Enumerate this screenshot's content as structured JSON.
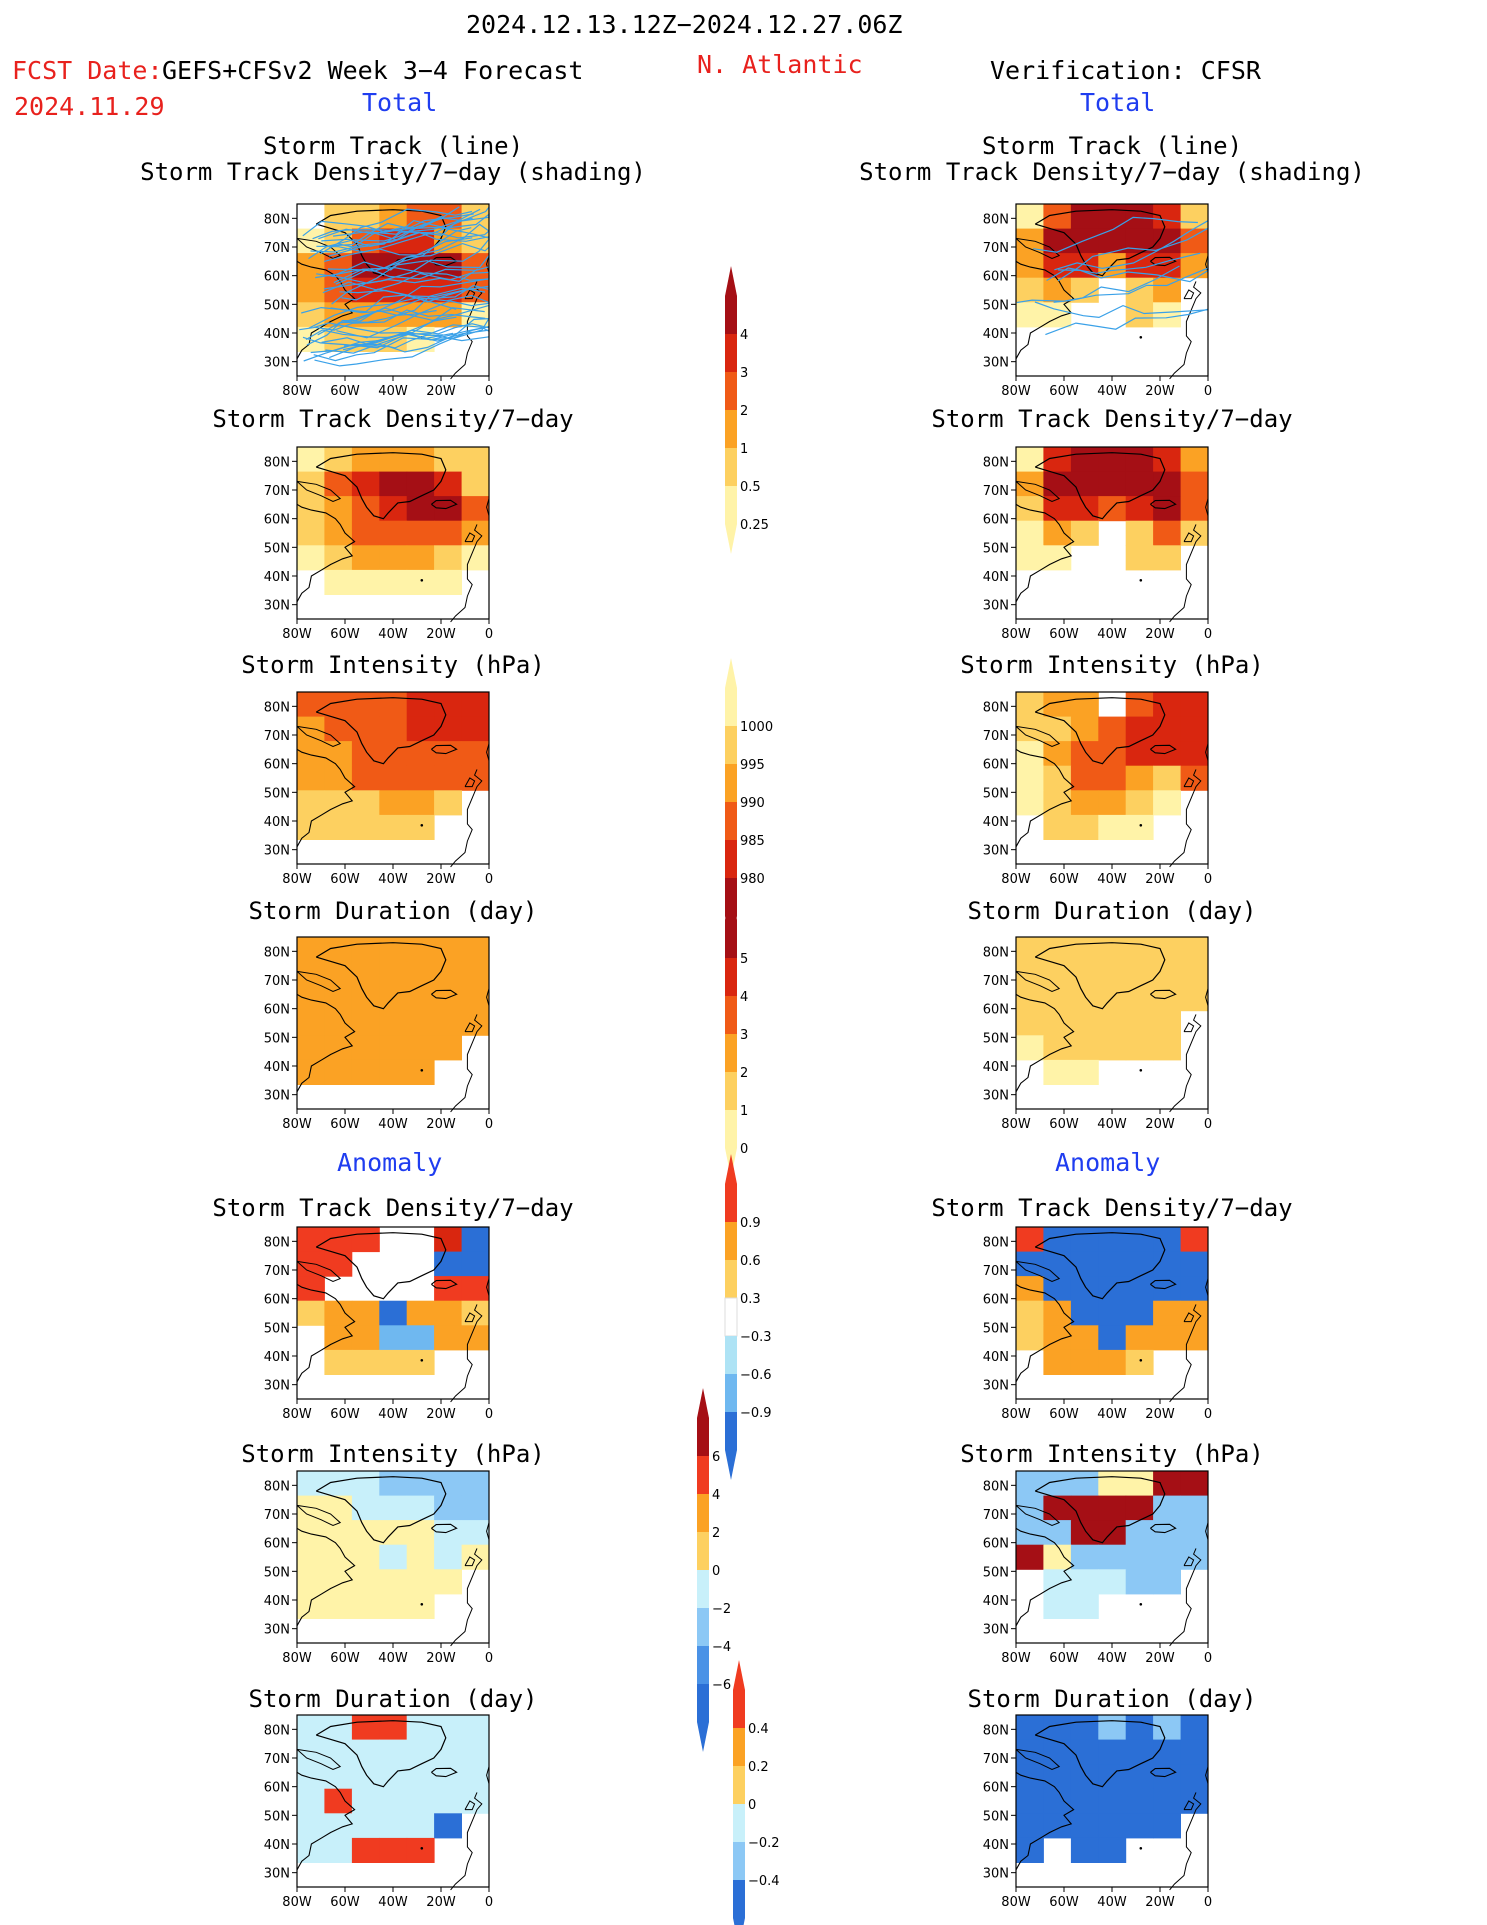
{
  "header": {
    "date_range": "2024.12.13.12Z−2024.12.27.06Z",
    "fcst_label": "FCST Date:",
    "fcst_date": "2024.11.29",
    "model": "GEFS+CFSv2 Week 3−4 Forecast",
    "region": "N. Atlantic",
    "verification": "Verification: CFSR",
    "total_label_left": "Total",
    "total_label_right": "Total",
    "anomaly_label_left": "Anomaly",
    "anomaly_label_right": "Anomaly"
  },
  "panel_titles": {
    "track_line": "Storm Track (line)",
    "track_shading": "Storm Track Density/7−day (shading)",
    "density": "Storm Track Density/7−day",
    "intensity": "Storm Intensity (hPa)",
    "duration": "Storm Duration (day)"
  },
  "axes": {
    "lat_ticks": [
      "80N",
      "70N",
      "60N",
      "50N",
      "40N",
      "30N"
    ],
    "lon_ticks": [
      "80W",
      "60W",
      "40W",
      "20W",
      "0"
    ]
  },
  "colorbars": {
    "density": {
      "labels": [
        "4",
        "3",
        "2",
        "1",
        "0.5",
        "0.25"
      ],
      "colors": [
        "#a50f15",
        "#d9260f",
        "#f05a16",
        "#fba224",
        "#fdd060",
        "#fff3a8"
      ]
    },
    "intensity": {
      "labels": [
        "1000",
        "995",
        "990",
        "985",
        "980"
      ],
      "colors": [
        "#fff3a8",
        "#fdd060",
        "#fba224",
        "#f05a16",
        "#d9260f",
        "#a50f15"
      ]
    },
    "duration": {
      "labels": [
        "5",
        "4",
        "3",
        "2",
        "1",
        "0"
      ],
      "colors": [
        "#a50f15",
        "#d9260f",
        "#f05a16",
        "#fba224",
        "#fdd060",
        "#fff3a8"
      ]
    },
    "density_anom": {
      "labels": [
        "0.9",
        "0.6",
        "0.3",
        "−0.3",
        "−0.6",
        "−0.9"
      ],
      "colors": [
        "#f03b20",
        "#fba224",
        "#fdd060",
        "#ffffff",
        "#aee3f5",
        "#6fb8f0",
        "#2b6fd6"
      ]
    },
    "intensity_anom": {
      "labels": [
        "6",
        "4",
        "2",
        "0",
        "−2",
        "−4",
        "−6"
      ],
      "colors": [
        "#a50f15",
        "#f03b20",
        "#fba224",
        "#fdd060",
        "#c8f0fa",
        "#8cc8f5",
        "#4a92e6",
        "#2b6fd6"
      ]
    },
    "duration_anom": {
      "labels": [
        "0.4",
        "0.2",
        "0",
        "−0.2",
        "−0.4"
      ],
      "colors": [
        "#f03b20",
        "#fba224",
        "#fdd060",
        "#c8f0fa",
        "#8cc8f5",
        "#2b6fd6"
      ]
    }
  },
  "chart_data": [
    {
      "type": "heatmap",
      "panel": "fcst-track",
      "title": "Storm Track (line) / Storm Track Density/7−day (shading)",
      "xlim": [
        -80,
        0
      ],
      "ylim": [
        25,
        85
      ],
      "palette": "dens",
      "rows": [
        "0223442",
        "1245532",
        "3466664",
        "3455554",
        "2333331",
        "1222100",
        "0000000"
      ]
    },
    {
      "type": "heatmap",
      "panel": "obs-track",
      "title": "Storm Track (line) / Storm Track Density/7−day (shading)",
      "xlim": [
        -80,
        0
      ],
      "ylim": [
        25,
        85
      ],
      "palette": "dens",
      "rows": [
        "1466652",
        "3666664",
        "3553553",
        "2320230",
        "1100210",
        "0000000",
        "0000000"
      ]
    },
    {
      "type": "heatmap",
      "panel": "fcst-density",
      "title": "Storm Track Density/7−day",
      "xlim": [
        -80,
        0
      ],
      "ylim": [
        25,
        85
      ],
      "palette": "dens",
      "rows": [
        "1233322",
        "2456652",
        "2345664",
        "2344443",
        "1233321",
        "0111110",
        "0000000"
      ]
    },
    {
      "type": "heatmap",
      "panel": "obs-density",
      "title": "Storm Track Density/7−day",
      "xlim": [
        -80,
        0
      ],
      "ylim": [
        25,
        85
      ],
      "palette": "dens",
      "rows": [
        "1566653",
        "3666664",
        "2554564",
        "1320242",
        "1100220",
        "0000000",
        "0000000"
      ]
    },
    {
      "type": "heatmap",
      "panel": "fcst-intensity",
      "title": "Storm Intensity (hPa)",
      "xlim": [
        -80,
        0
      ],
      "ylim": [
        25,
        85
      ],
      "palette": "int",
      "rows": [
        "4444555",
        "3444555",
        "3344444",
        "3344444",
        "2223320",
        "2222200",
        "0000000"
      ]
    },
    {
      "type": "heatmap",
      "panel": "obs-intensity",
      "title": "Storm Intensity (hPa)",
      "xlim": [
        -80,
        0
      ],
      "ylim": [
        25,
        85
      ],
      "palette": "int",
      "rows": [
        "2330455",
        "2234555",
        "1344555",
        "1244324",
        "1233210",
        "0221100",
        "0000000"
      ]
    },
    {
      "type": "heatmap",
      "panel": "fcst-duration",
      "title": "Storm Duration (day)",
      "xlim": [
        -80,
        0
      ],
      "ylim": [
        25,
        85
      ],
      "palette": "dur",
      "rows": [
        "3333333",
        "3333333",
        "3333333",
        "3333333",
        "3333330",
        "3333300",
        "0000000"
      ]
    },
    {
      "type": "heatmap",
      "panel": "obs-duration",
      "title": "Storm Duration (day)",
      "xlim": [
        -80,
        0
      ],
      "ylim": [
        25,
        85
      ],
      "palette": "dur",
      "rows": [
        "2222222",
        "2222222",
        "2222222",
        "2222220",
        "1222220",
        "0110000",
        "0000000"
      ]
    },
    {
      "type": "heatmap",
      "panel": "fcst-density-anom",
      "title": "Storm Track Density/7−day",
      "xlim": [
        -80,
        0
      ],
      "ylim": [
        25,
        85
      ],
      "palette": "danom",
      "rows": [
        "3330076",
        "3300066",
        "3000033",
        "1226221",
        "0225522",
        "0111100",
        "0000000"
      ]
    },
    {
      "type": "heatmap",
      "panel": "obs-density-anom",
      "title": "Storm Track Density/7−day",
      "xlim": [
        -80,
        0
      ],
      "ylim": [
        25,
        85
      ],
      "palette": "danom",
      "rows": [
        "3666663",
        "6666666",
        "2666666",
        "1266622",
        "1226222",
        "0222100",
        "0000000"
      ]
    },
    {
      "type": "heatmap",
      "panel": "fcst-intensity-anom",
      "title": "Storm Intensity (hPa)",
      "xlim": [
        -80,
        0
      ],
      "ylim": [
        25,
        85
      ],
      "palette": "ianom",
      "rows": [
        "5556666",
        "4455566",
        "4444455",
        "4445454",
        "4444440",
        "4444400",
        "0000000"
      ]
    },
    {
      "type": "heatmap",
      "panel": "obs-intensity-anom",
      "title": "Storm Intensity (hPa)",
      "xlim": [
        -80,
        0
      ],
      "ylim": [
        25,
        85
      ],
      "palette": "ianom",
      "rows": [
        "6664477",
        "6777766",
        "6677666",
        "7466666",
        "0555660",
        "0550000",
        "0000000"
      ]
    },
    {
      "type": "heatmap",
      "panel": "fcst-duration-anom",
      "title": "Storm Duration (day)",
      "xlim": [
        -80,
        0
      ],
      "ylim": [
        25,
        85
      ],
      "palette": "uanom",
      "rows": [
        "4433444",
        "4444444",
        "4444444",
        "4344444",
        "4444450",
        "4433300",
        "0000000"
      ]
    },
    {
      "type": "heatmap",
      "panel": "obs-duration-anom",
      "title": "Storm Duration (day)",
      "xlim": [
        -80,
        0
      ],
      "ylim": [
        25,
        85
      ],
      "palette": "uanom",
      "rows": [
        "5556565",
        "5555555",
        "5555555",
        "5555555",
        "5555550",
        "5055000",
        "0000000"
      ]
    }
  ]
}
